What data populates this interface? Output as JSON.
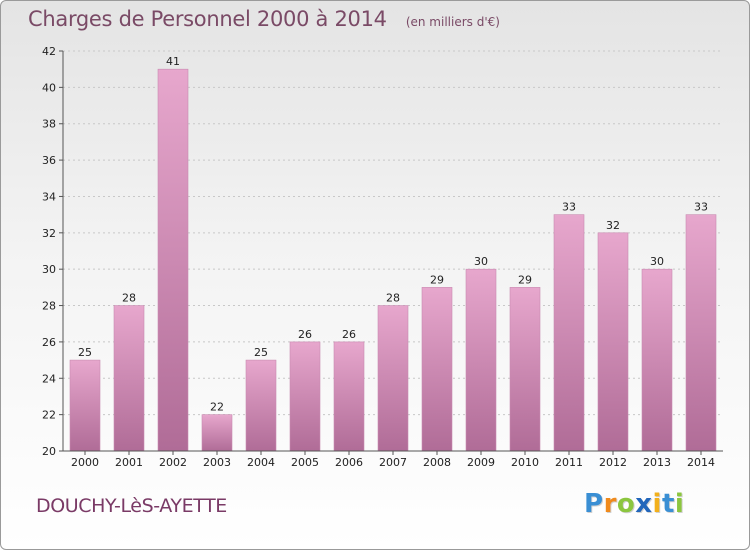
{
  "title": "Charges de Personnel 2000 à 2014",
  "subtitle": "(en milliers d'€)",
  "commune": "DOUCHY-LèS-AYETTE",
  "logo": {
    "text": "Proxiti",
    "letters": [
      "P",
      "r",
      "o",
      "x",
      "i",
      "t",
      "i"
    ],
    "colors": [
      "#3a8fd4",
      "#f08a1c",
      "#8cc63f",
      "#2266bb",
      "#f2b01c",
      "#3a8fd4",
      "#8cc63f"
    ]
  },
  "colors": {
    "bar_top": "#e7a7cd",
    "bar_bottom": "#b06c97",
    "title": "#7a4a66"
  },
  "chart_data": {
    "type": "bar",
    "title": "Charges de Personnel 2000 à 2014",
    "subtitle": "(en milliers d'€)",
    "categories": [
      "2000",
      "2001",
      "2002",
      "2003",
      "2004",
      "2005",
      "2006",
      "2007",
      "2008",
      "2009",
      "2010",
      "2011",
      "2012",
      "2013",
      "2014"
    ],
    "values": [
      25,
      28,
      41,
      22,
      25,
      26,
      26,
      28,
      29,
      30,
      29,
      33,
      32,
      30,
      33
    ],
    "ylim": [
      20,
      42
    ],
    "yticks": [
      20,
      22,
      24,
      26,
      28,
      30,
      32,
      34,
      36,
      38,
      40,
      42
    ],
    "grid": true,
    "data_labels": true,
    "xlabel": "",
    "ylabel": ""
  }
}
